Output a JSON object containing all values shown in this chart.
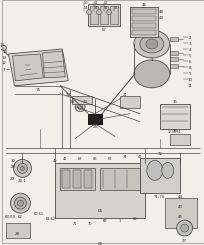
{
  "bg_color": "#f0efe8",
  "line_color": "#4a4a4a",
  "text_color": "#2a2a2a",
  "light_fill": "#e8e7e0",
  "mid_fill": "#d8d7d0",
  "dark_fill": "#222222",
  "border_color": "#999999"
}
